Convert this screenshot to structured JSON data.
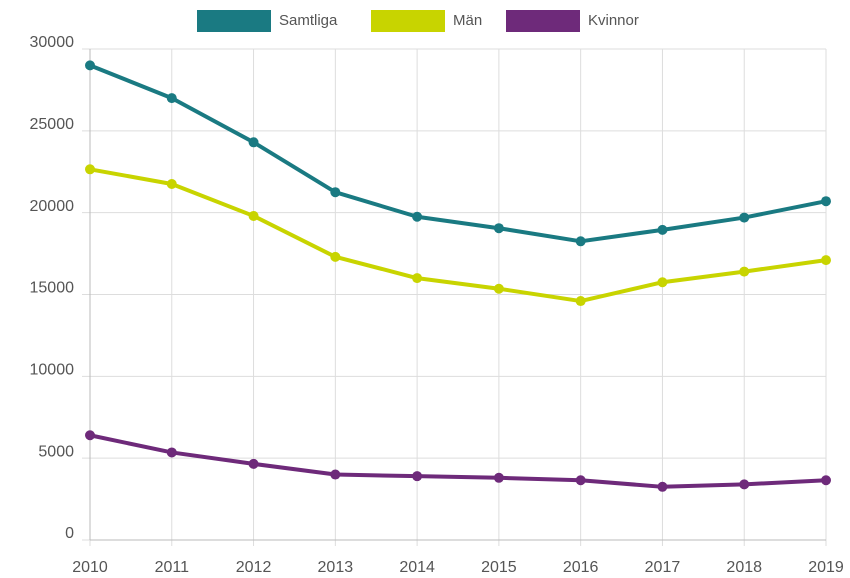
{
  "chart_data": {
    "type": "line",
    "categories": [
      "2010",
      "2011",
      "2012",
      "2013",
      "2014",
      "2015",
      "2016",
      "2017",
      "2018",
      "2019"
    ],
    "series": [
      {
        "name": "Samtliga",
        "color": "#1a7a82",
        "values": [
          29000,
          27000,
          24300,
          21250,
          19750,
          19050,
          18250,
          18950,
          19700,
          20700
        ]
      },
      {
        "name": "Män",
        "color": "#c8d400",
        "values": [
          22650,
          21750,
          19800,
          17300,
          16000,
          15350,
          14600,
          15750,
          16400,
          17100
        ]
      },
      {
        "name": "Kvinnor",
        "color": "#6e2a7a",
        "values": [
          6400,
          5350,
          4650,
          4000,
          3900,
          3800,
          3650,
          3250,
          3400,
          3650
        ]
      }
    ],
    "ylim": [
      0,
      30000
    ],
    "yticks": [
      0,
      5000,
      10000,
      15000,
      20000,
      25000,
      30000
    ],
    "grid": true,
    "legend": "top"
  }
}
